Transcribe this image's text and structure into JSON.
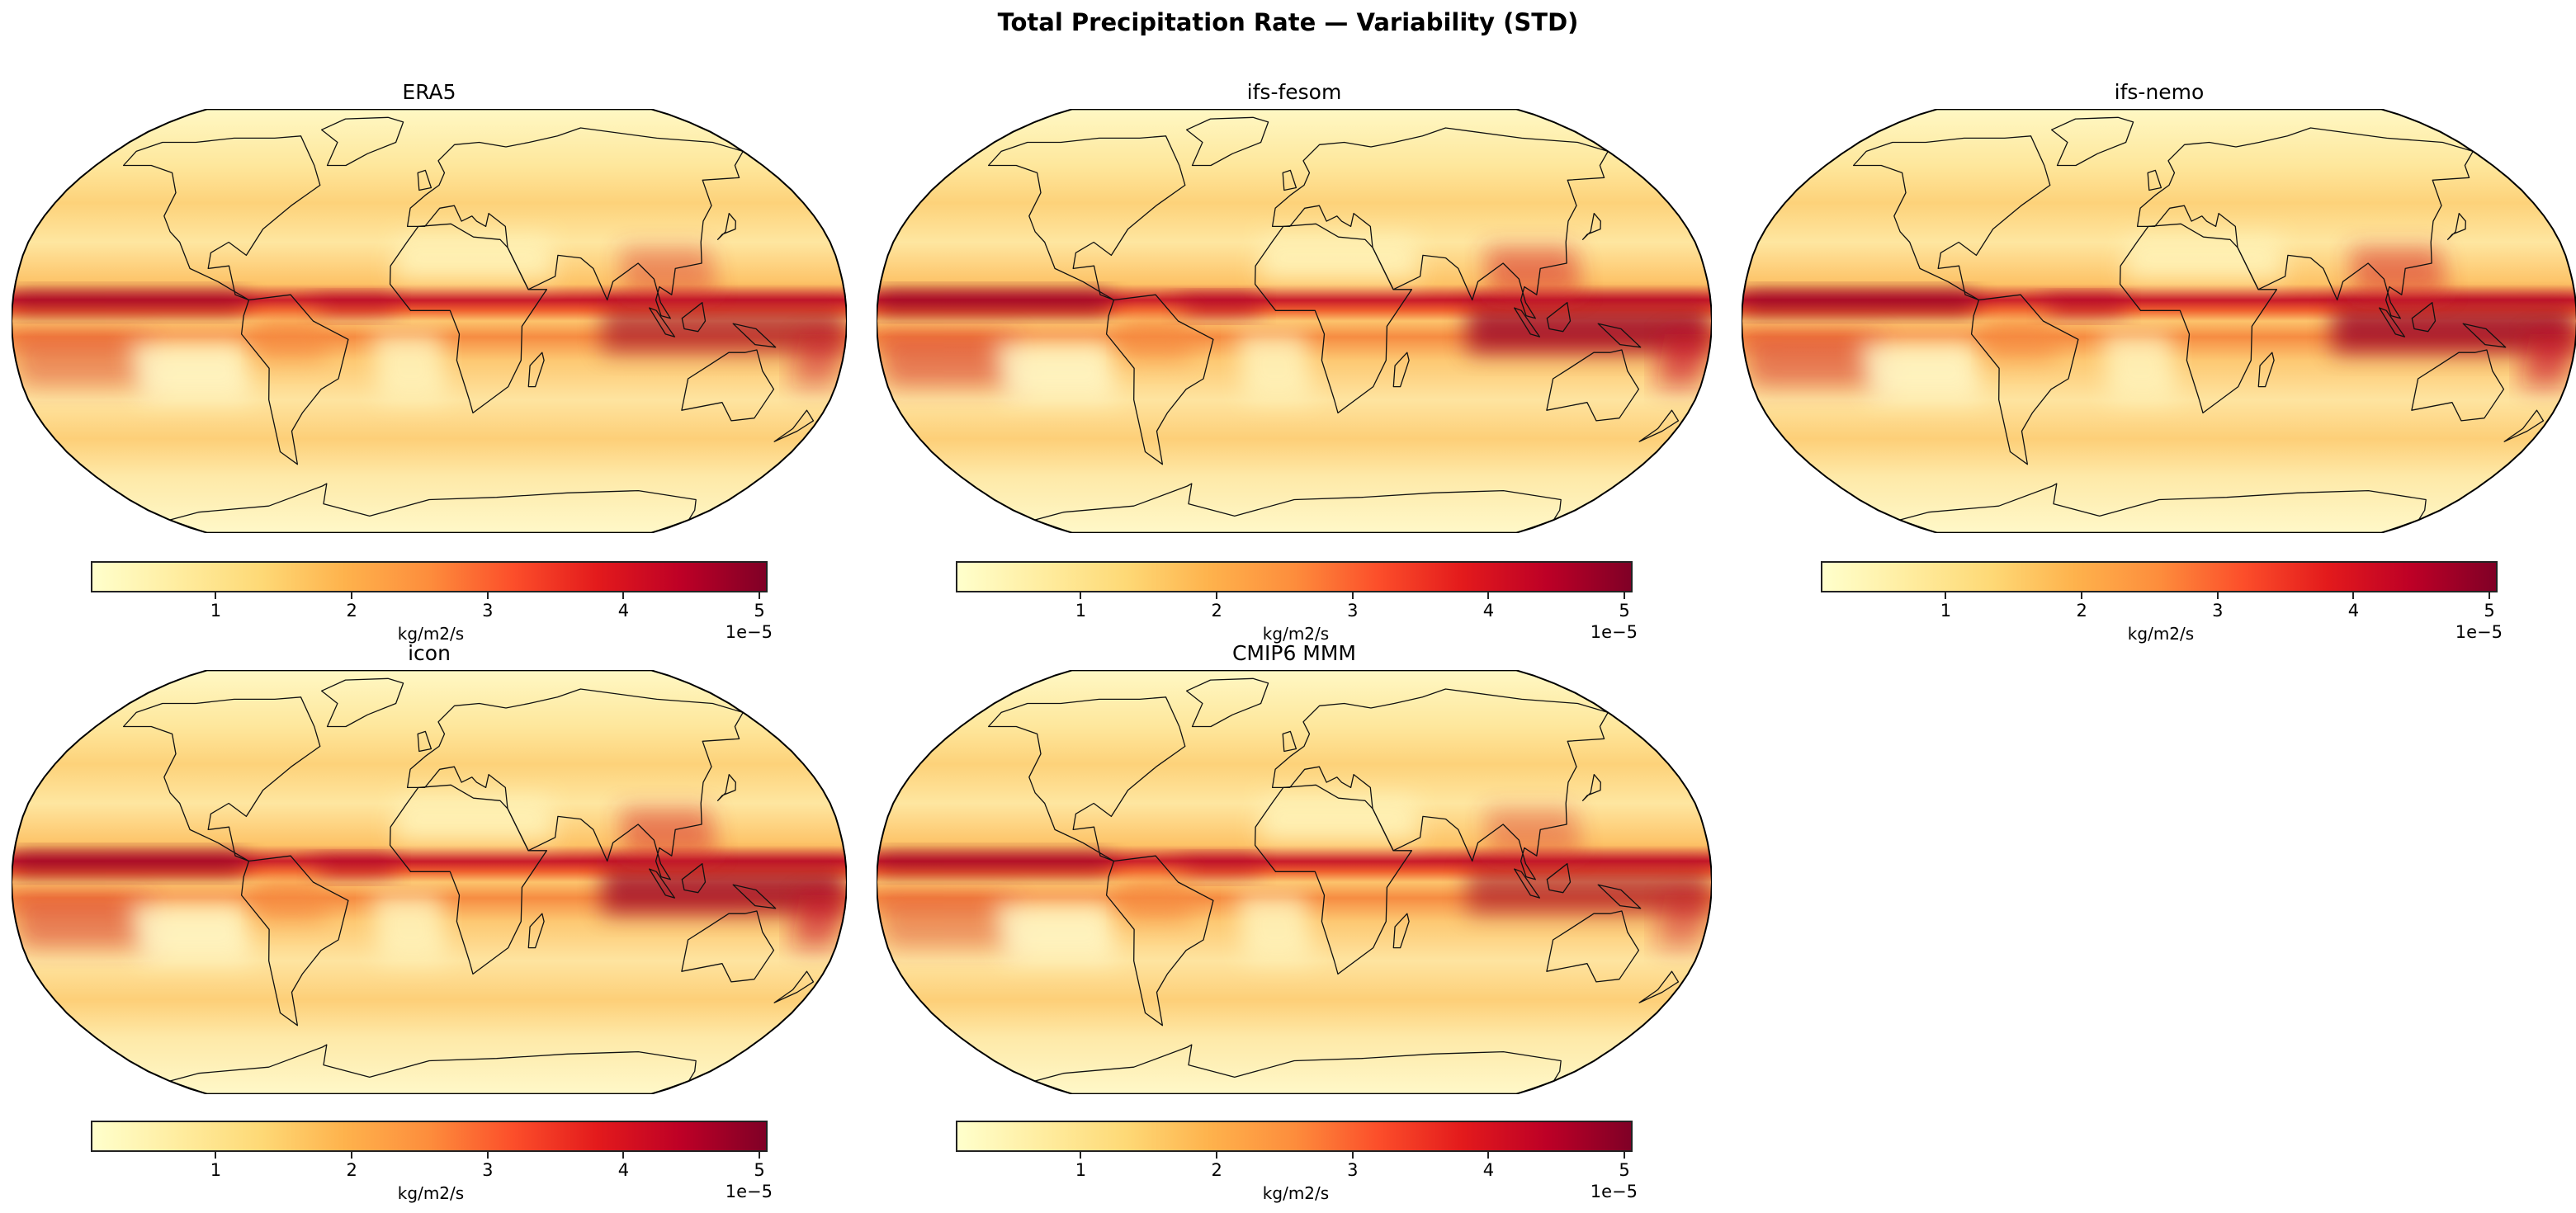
{
  "title": "Total Precipitation Rate — Variability (STD)",
  "chart_data": {
    "type": "heatmap",
    "projection": "Robinson",
    "colormap": "YlOrRd",
    "colormap_colors": [
      "#ffffcc",
      "#ffeda0",
      "#fed976",
      "#feb24c",
      "#fd8d3c",
      "#fc4e2a",
      "#e31a1c",
      "#bd0026",
      "#800026"
    ],
    "coastlines": true,
    "colorbar": {
      "label": "kg/m2/s",
      "multiplier": "1e−5",
      "ticks": [
        1,
        2,
        3,
        4,
        5
      ],
      "tick_labels": [
        "1",
        "2",
        "3",
        "4",
        "5"
      ],
      "range": [
        0.08,
        5.06
      ],
      "orientation": "horizontal"
    },
    "panels": [
      {
        "title": "ERA5"
      },
      {
        "title": "ifs-fesom"
      },
      {
        "title": "ifs-nemo"
      },
      {
        "title": "icon"
      },
      {
        "title": "CMIP6 MMM"
      }
    ]
  }
}
